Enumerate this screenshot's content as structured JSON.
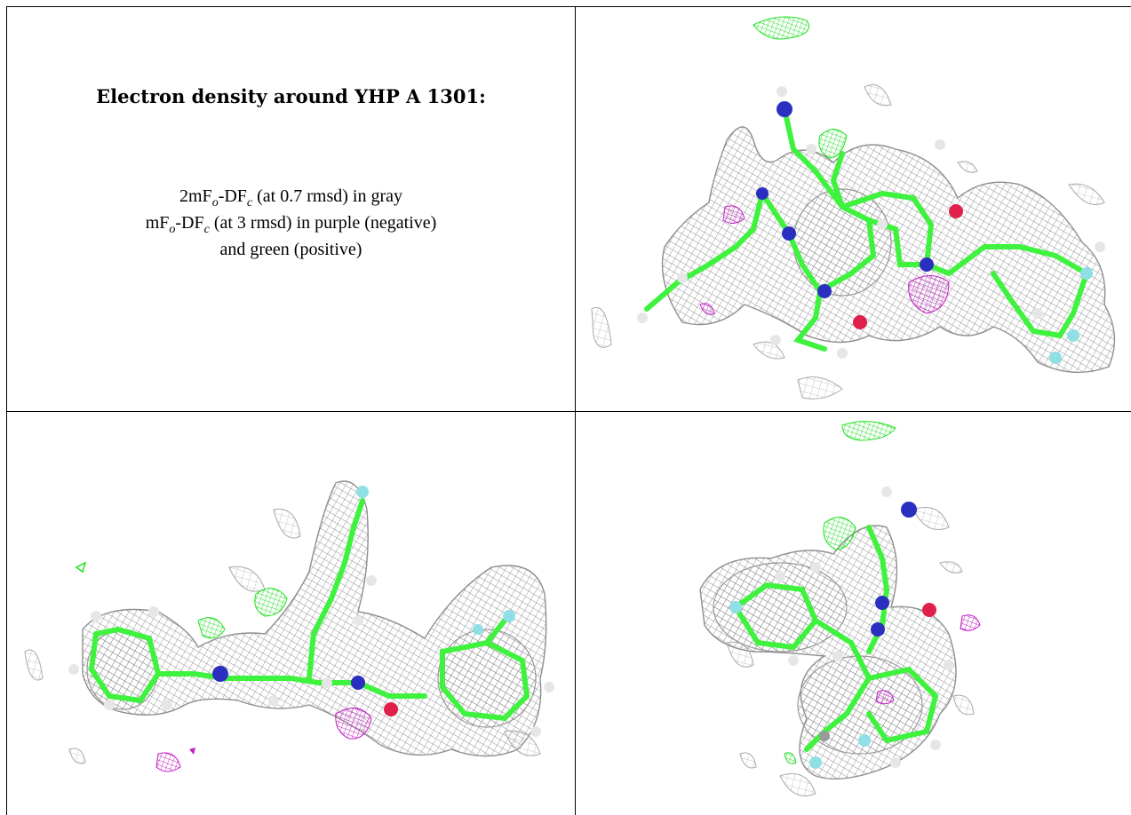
{
  "caption": {
    "title": "Electron density around YHP A 1301:",
    "line1": {
      "pre": "2mF",
      "sub1": "o",
      "mid": "-DF",
      "sub2": "c",
      "post": " (at 0.7 rmsd) in gray"
    },
    "line2": {
      "pre": "mF",
      "sub1": "o",
      "mid": "-DF",
      "sub2": "c",
      "post": " (at 3 rmsd) in purple (negative)"
    },
    "line3": "and green (positive)"
  },
  "colors": {
    "density_mesh": "#8f8f8f",
    "negative_density": "#c31fc6",
    "positive_density": "#22e022",
    "carbon": "#3ef23e",
    "nitrogen": "#2b2fbf",
    "oxygen": "#e0204a",
    "fluorine": "#8fdfe6",
    "hydrogen": "#e6e6e6"
  },
  "views": [
    {
      "name": "ligand-view-top"
    },
    {
      "name": "ligand-view-side"
    },
    {
      "name": "ligand-view-end"
    }
  ]
}
